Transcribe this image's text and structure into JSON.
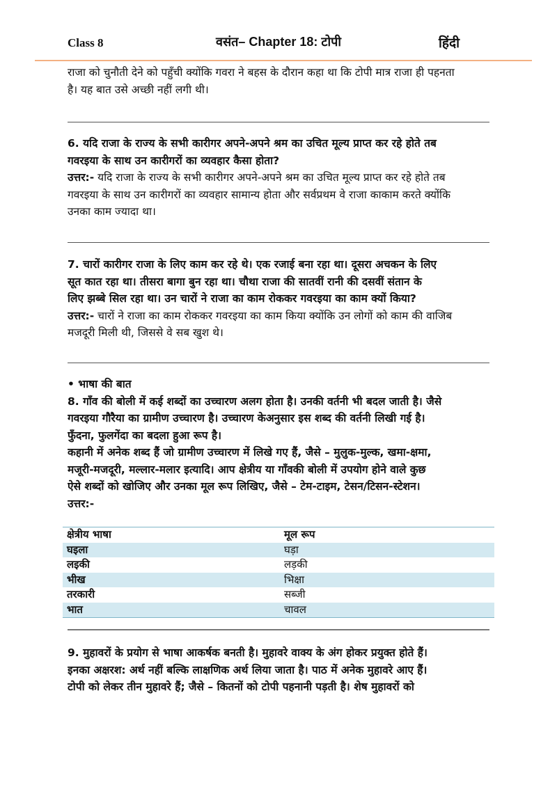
{
  "header": {
    "class": "Class 8",
    "title": "वसंत– Chapter 18: टोपी",
    "subject": "हिंदी",
    "accent": "#f4b183"
  },
  "p1": [
    "राजा को चुनौती देने को पहुँची क्योंकि गवरा ने बहस के दौरान कहा था कि टोपी मात्र राजा ही पहनता",
    "है। यह बात उसे अच्छी नहीं लगी थी।"
  ],
  "q6": {
    "question": [
      "6. यदि राजा के राज्य के सभी कारीगर अपने-अपने श्रम का उचित मूल्य प्राप्त कर रहे होते तब",
      "गवरइया के साथ उन कारीगरों का व्यवहार कैसा होता?"
    ],
    "answer_label": "उत्तर:-",
    "answer": [
      " यदि राजा के राज्य के सभी कारीगर अपने-अपने श्रम का उचित मूल्य प्राप्त कर रहे होते तब",
      "गवरइया के साथ उन कारीगरों का व्यवहार सामान्य होता और सर्वप्रथम वे राजा काकाम करते क्योंकि",
      "उनका काम ज्यादा था।"
    ]
  },
  "q7": {
    "question": [
      "7. चारों कारीगर राजा के लिए काम कर रहे थे। एक रजाई बना रहा था। दूसरा अचकन के लिए",
      "सूत कात रहा था। तीसरा बागा बुन रहा था। चौथा राजा की सातवीं रानी की दसवीं संतान के",
      "लिए झब्बे सिल रहा था। उन चारों ने राजा का काम रोककर गवरइया का काम क्यों किया?"
    ],
    "answer_label": "उत्तर:-",
    "answer": [
      " चारों ने राजा का काम रोककर गवरइया का काम किया क्योंकि उन लोगों को काम की वाजिब",
      "मजदूरी मिली थी, जिससे वे सब खुश थे।"
    ]
  },
  "section": "• भाषा की बात",
  "q8": [
    "8. गाँव की बोली में कई शब्दों का उच्चारण अलग होता है। उनकी वर्तनी भी बदल जाती है। जैसे",
    "गवरइया गौरैया का ग्रामीण उच्चारण है। उच्चारण केअनुसार इस शब्द की वर्तनी लिखी गई है।",
    "फुँदना, फुलगेंदा का बदला हुआ रूप है।",
    "कहानी में अनेक शब्द हैं जो ग्रामीण उच्चारण में लिखे गए हैं, जैसे – मुलुक-मुल्क, खमा-क्षमा,",
    "मजूरी-मजदूरी, मल्लार-मलार इत्यादि। आप क्षेत्रीय या गाँवकी बोली में उपयोग होने वाले कुछ",
    "ऐसे शब्दों को खोजिए और उनका मूल रूप लिखिए, जैसे – टेम-टाइम, टेसन/टिसन-स्टेशन।",
    "उत्तर:-"
  ],
  "table": {
    "headers": [
      "क्षेत्रीय भाषा",
      "मूल रूप"
    ],
    "rows": [
      [
        "घइला",
        "घड़ा"
      ],
      [
        "लइकी",
        "लड़की"
      ],
      [
        "भीख",
        "भिक्षा"
      ],
      [
        "तरकारी",
        "सब्जी"
      ],
      [
        "भात",
        "चावल"
      ]
    ],
    "shade": "#d3e9f1"
  },
  "q9": [
    "9. मुहावरों के प्रयोग से भाषा आकर्षक बनती है। मुहावरे वाक्य के अंग होकर प्रयुक्त होते हैं।",
    "इनका अक्षरश: अर्थ नहीं बल्कि लाक्षणिक अर्थ लिया जाता है। पाठ में अनेक मुहावरे आए हैं।",
    "टोपी को लेकर तीन मुहावरे हैं; जैसे – कितनों को टोपी पहनानी पड़ती है। शेष मुहावरों को"
  ]
}
